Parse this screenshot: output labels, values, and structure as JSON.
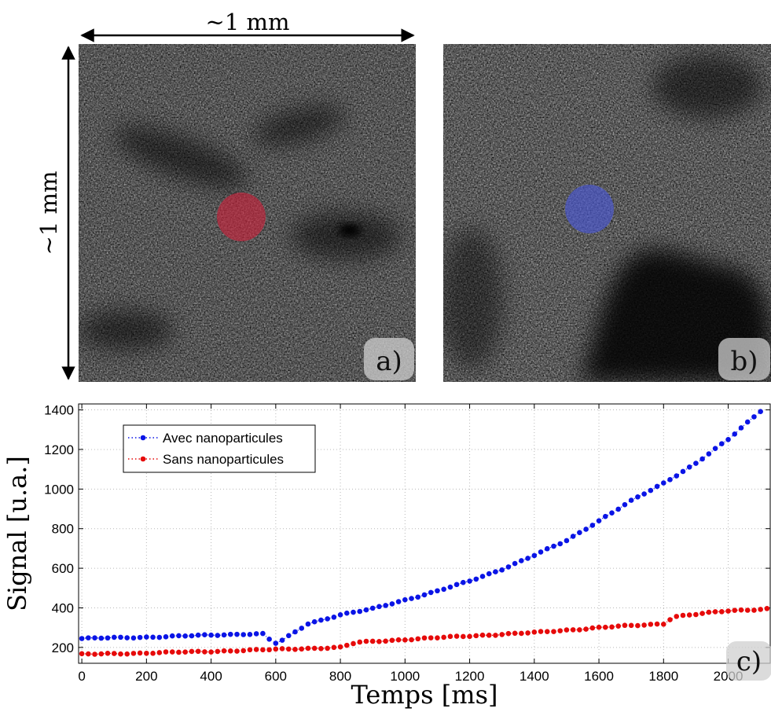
{
  "figure": {
    "scale_width_label": "~1 mm",
    "scale_height_label": "~1 mm",
    "panel_a": {
      "label": "a)",
      "marker_color": "#c8243c"
    },
    "panel_b": {
      "label": "b)",
      "marker_color": "#4a57d6"
    },
    "panel_c": {
      "label": "c)"
    }
  },
  "chart_data": {
    "type": "scatter",
    "xlabel": "Temps [ms]",
    "ylabel": "Signal [u.a.]",
    "xlim": [
      -10,
      2130
    ],
    "ylim": [
      120,
      1430
    ],
    "grid": true,
    "legend_position": "top-left",
    "x_ticks": [
      0,
      200,
      400,
      600,
      800,
      1000,
      1200,
      1400,
      1600,
      1800,
      2000
    ],
    "y_ticks": [
      200,
      400,
      600,
      800,
      1000,
      1200,
      1400
    ],
    "x_tick_labels": [
      "0",
      "200",
      "400",
      "600",
      "800",
      "1000",
      "1200",
      "1400",
      "1600",
      "1800",
      "2000"
    ],
    "y_tick_labels": [
      "200",
      "400",
      "600",
      "800",
      "1000",
      "1200",
      "1400"
    ],
    "series": [
      {
        "name": "Avec nanoparticules",
        "color": "#0a14e6",
        "anchors_x": [
          0,
          200,
          400,
          500,
          570,
          590,
          620,
          700,
          800,
          900,
          1000,
          1100,
          1200,
          1300,
          1400,
          1500,
          1600,
          1700,
          1800,
          1900,
          2000,
          2100
        ],
        "anchors_y": [
          245,
          252,
          262,
          268,
          268,
          215,
          235,
          320,
          365,
          395,
          440,
          485,
          535,
          595,
          665,
          740,
          840,
          940,
          1030,
          1130,
          1250,
          1395
        ]
      },
      {
        "name": "Sans nanoparticules",
        "color": "#e60a0a",
        "anchors_x": [
          0,
          200,
          400,
          500,
          600,
          800,
          850,
          1000,
          1200,
          1400,
          1600,
          1800,
          1830,
          2000,
          2120
        ],
        "anchors_y": [
          165,
          172,
          180,
          185,
          190,
          200,
          225,
          240,
          258,
          275,
          300,
          320,
          355,
          385,
          395
        ]
      }
    ],
    "sample_step_ms": 20
  }
}
